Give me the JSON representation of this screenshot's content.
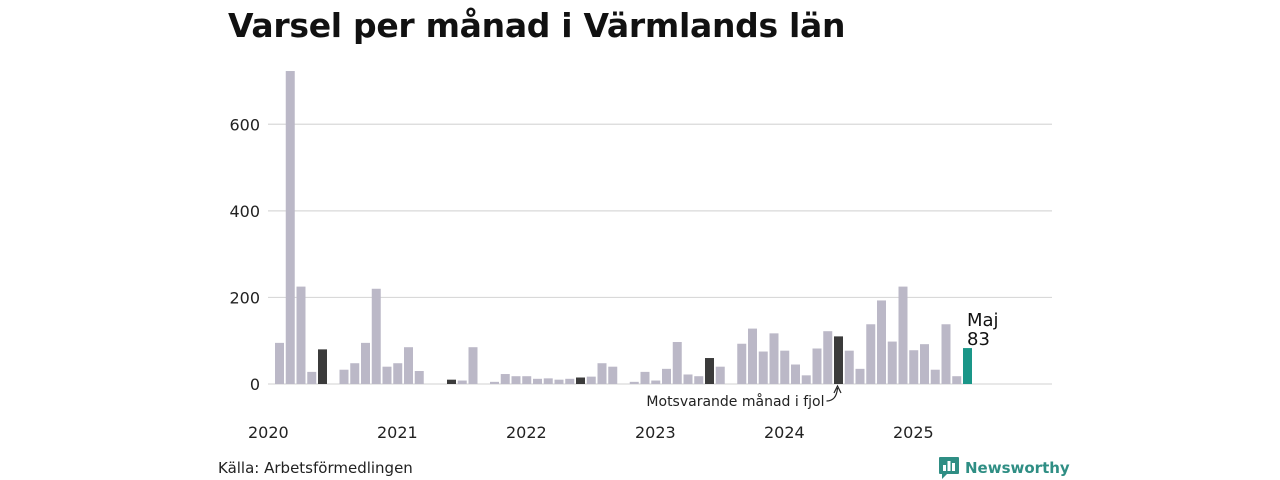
{
  "chart_data": {
    "type": "bar",
    "title": "Varsel per månad i Värmlands län",
    "xlabel": "",
    "ylabel": "",
    "ylim": [
      0,
      730
    ],
    "yticks": [
      0,
      200,
      400,
      600
    ],
    "grid": true,
    "year_labels": [
      {
        "label": "2020",
        "index": 0
      },
      {
        "label": "2021",
        "index": 12
      },
      {
        "label": "2022",
        "index": 24
      },
      {
        "label": "2023",
        "index": 36
      },
      {
        "label": "2024",
        "index": 48
      },
      {
        "label": "2025",
        "index": 60
      }
    ],
    "months": [
      "2020-01",
      "2020-02",
      "2020-03",
      "2020-04",
      "2020-05",
      "2020-06",
      "2020-07",
      "2020-08",
      "2020-09",
      "2020-10",
      "2020-11",
      "2020-12",
      "2021-01",
      "2021-02",
      "2021-03",
      "2021-04",
      "2021-05",
      "2021-06",
      "2021-07",
      "2021-08",
      "2021-09",
      "2021-10",
      "2021-11",
      "2021-12",
      "2022-01",
      "2022-02",
      "2022-03",
      "2022-04",
      "2022-05",
      "2022-06",
      "2022-07",
      "2022-08",
      "2022-09",
      "2022-10",
      "2022-11",
      "2022-12",
      "2023-01",
      "2023-02",
      "2023-03",
      "2023-04",
      "2023-05",
      "2023-06",
      "2023-07",
      "2023-08",
      "2023-09",
      "2023-10",
      "2023-11",
      "2023-12",
      "2024-01",
      "2024-02",
      "2024-03",
      "2024-04",
      "2024-05",
      "2024-06",
      "2024-07",
      "2024-08",
      "2024-09",
      "2024-10",
      "2024-11",
      "2024-12",
      "2025-01",
      "2025-02",
      "2025-03",
      "2025-04",
      "2025-05"
    ],
    "values": [
      95,
      723,
      225,
      28,
      80,
      0,
      33,
      48,
      95,
      220,
      40,
      48,
      85,
      30,
      0,
      0,
      10,
      8,
      85,
      0,
      5,
      23,
      18,
      18,
      12,
      13,
      10,
      12,
      15,
      17,
      48,
      40,
      0,
      5,
      28,
      8,
      35,
      97,
      22,
      18,
      60,
      40,
      0,
      93,
      128,
      75,
      117,
      77,
      45,
      20,
      82,
      122,
      110,
      77,
      35,
      138,
      193,
      98,
      225,
      78,
      92,
      33,
      138,
      18,
      83
    ],
    "highlight_same_month_index": [
      4,
      16,
      28,
      40,
      52
    ],
    "current_index": 64,
    "colors": {
      "default": "#bbb8c7",
      "same_month": "#3b3b3b",
      "current": "#1a9688",
      "grid": "#d9d9d9"
    },
    "current_label": {
      "month": "Maj",
      "value": "83"
    },
    "annotation": "Motsvarande månad i fjol",
    "annotation_index": 52
  },
  "source": "Källa: Arbetsförmedlingen",
  "brand": {
    "name": "Newsworthy",
    "icon": "bar-chart-speech-bubble-icon",
    "color": "#2f8e84"
  }
}
